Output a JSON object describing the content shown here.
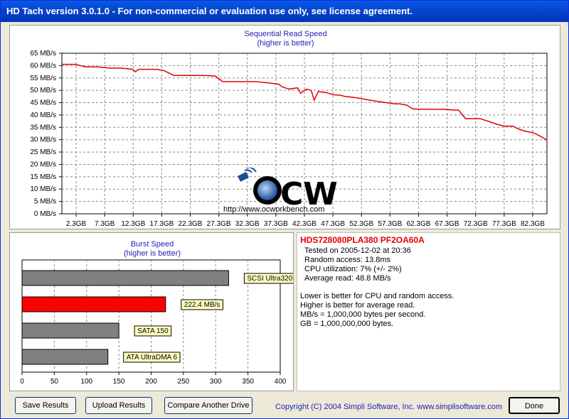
{
  "window": {
    "title": "HD Tach version 3.0.1.0  - For non-commercial or evaluation use only, see license agreement."
  },
  "colors": {
    "accent": "#e30000",
    "titlebar": "#0443c9",
    "title_text": "#1f1fb6",
    "bar_gray": "#808080"
  },
  "sequential_chart": {
    "title_line1": "Sequential Read Speed",
    "title_line2": "(higher is better)",
    "y_ticks": [
      "65 MB/s",
      "60 MB/s",
      "55 MB/s",
      "50 MB/s",
      "45 MB/s",
      "40 MB/s",
      "35 MB/s",
      "30 MB/s",
      "25 MB/s",
      "20 MB/s",
      "15 MB/s",
      "10 MB/s",
      "5 MB/s",
      "0 MB/s"
    ],
    "x_ticks": [
      "2.3GB",
      "7.3GB",
      "12.3GB",
      "17.3GB",
      "22.3GB",
      "27.3GB",
      "32.3GB",
      "37.3GB",
      "42.3GB",
      "47.3GB",
      "52.3GB",
      "57.3GB",
      "62.3GB",
      "67.3GB",
      "72.3GB",
      "77.3GB",
      "82.3GB"
    ],
    "watermark_url": "http://www.ocworkbench.com",
    "watermark_logo": "OCW"
  },
  "burst_chart": {
    "title_line1": "Burst Speed",
    "title_line2": "(higher is better)",
    "x_ticks": [
      "0",
      "50",
      "100",
      "150",
      "200",
      "250",
      "300",
      "350",
      "400"
    ],
    "bars": [
      {
        "label": "SCSI Ultra320",
        "value": 320,
        "color": "#808080"
      },
      {
        "label": "222.4 MB/s",
        "value": 222.4,
        "color": "#ff0000"
      },
      {
        "label": "SATA 150",
        "value": 150,
        "color": "#808080"
      },
      {
        "label": "ATA UltraDMA 6",
        "value": 133,
        "color": "#808080"
      }
    ]
  },
  "info": {
    "drive": "HDS728080PLA380 PF2OA60A",
    "tested": "Tested on 2005-12-02 at 20:36",
    "random_access": "Random access: 13.8ms",
    "cpu": "CPU utilization: 7% (+/- 2%)",
    "avg_read": "Average read: 48.8 MB/s",
    "note1": "Lower is better for CPU and random access.",
    "note2": "Higher is better for average read.",
    "note3": "MB/s = 1,000,000 bytes per second.",
    "note4": "GB = 1,000,000,000 bytes."
  },
  "footer": {
    "save_button": "Save Results",
    "upload_button": "Upload Results",
    "compare_button": "Compare Another Drive",
    "copyright": "Copyright (C) 2004 Simpli Software, Inc. www.simplisoftware.com",
    "done_button": "Done"
  },
  "chart_data": [
    {
      "type": "line",
      "title": "Sequential Read Speed",
      "subtitle": "(higher is better)",
      "xlabel": "",
      "ylabel": "",
      "ylim": [
        0,
        65
      ],
      "xlim": [
        0,
        82.3
      ],
      "grid": true,
      "series": [
        {
          "x": [
            0,
            2.3,
            4,
            6,
            8,
            10,
            12,
            12.5,
            13,
            14,
            16,
            17.3,
            19,
            20.5,
            22.3,
            24,
            26,
            27.3,
            29,
            31,
            33,
            35,
            36.8,
            37.3,
            38.5,
            40,
            40.5,
            41.5,
            42.3,
            42.8,
            43.5,
            45,
            46,
            47.3,
            48,
            50,
            51,
            52.3,
            53.5,
            55,
            56.5,
            57.3,
            58.5,
            59.5,
            61,
            62.3,
            63.5,
            65,
            66.5,
            67.3,
            68.5,
            70,
            71,
            72.3,
            73.5,
            75,
            76.5,
            77.3,
            78.5,
            80,
            81.5,
            82.3
          ],
          "y": [
            60.5,
            60.5,
            59.5,
            59.5,
            59,
            59,
            58.5,
            57.5,
            58.5,
            58.5,
            58.5,
            58,
            56,
            56,
            56,
            56,
            55.8,
            53.5,
            53.5,
            53.5,
            53.5,
            53,
            52.5,
            51.5,
            50.5,
            51,
            48.8,
            50.5,
            50,
            46,
            49.5,
            49,
            48.2,
            48,
            47.5,
            47,
            46.5,
            46,
            45.5,
            45,
            44.5,
            44.5,
            44,
            42.5,
            42.3,
            42.3,
            42.3,
            42.3,
            42,
            42,
            38.5,
            38.5,
            38.5,
            37.5,
            36.5,
            35.5,
            35.5,
            34.5,
            33.5,
            32.8,
            31,
            29.8
          ]
        }
      ]
    },
    {
      "type": "bar",
      "title": "Burst Speed",
      "subtitle": "(higher is better)",
      "categories": [
        "SCSI Ultra320",
        "222.4 MB/s",
        "SATA 150",
        "ATA UltraDMA 6"
      ],
      "values": [
        320,
        222.4,
        150,
        133
      ],
      "xlim": [
        0,
        400
      ],
      "orientation": "horizontal"
    }
  ]
}
